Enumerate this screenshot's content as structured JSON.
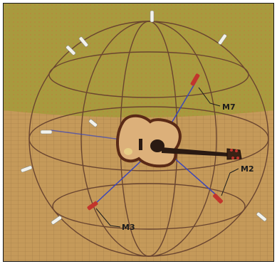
{
  "scene": {
    "colors": {
      "backdrop": "#a89a3e",
      "floor": "#c59a5a",
      "floor_grid": "#8f6a3a",
      "sphere": "#6a4530",
      "guide_lines": "#3c46b8",
      "mic_red": "#c2352c",
      "mic_white": "#f2f2ec",
      "guitar_body": "#dcb07a",
      "guitar_edge": "#5a2a16",
      "guitar_neck": "#2a1a12"
    },
    "labels": [
      {
        "id": "m7",
        "text": "M7"
      },
      {
        "id": "m2",
        "text": "M2"
      },
      {
        "id": "m3",
        "text": "M3"
      }
    ]
  }
}
